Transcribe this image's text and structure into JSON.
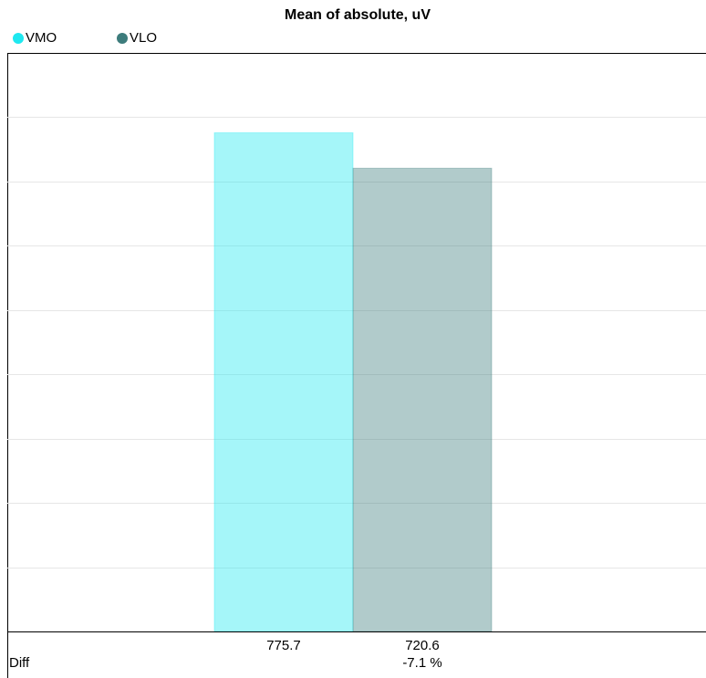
{
  "chart_data": {
    "type": "bar",
    "title": "Mean of absolute, uV",
    "categories": [
      null
    ],
    "series": [
      {
        "name": "VMO",
        "color": "#1ee8f0",
        "values": [
          775.7
        ]
      },
      {
        "name": "VLO",
        "color": "#3d7c7c",
        "values": [
          720.6
        ]
      }
    ],
    "ylim": [
      0,
      900
    ],
    "yticks": [
      0,
      100,
      200,
      300,
      400,
      500,
      600,
      700,
      800,
      900
    ],
    "grid": true,
    "diff_label": "Diff",
    "diff_text": "-7.1 %"
  }
}
